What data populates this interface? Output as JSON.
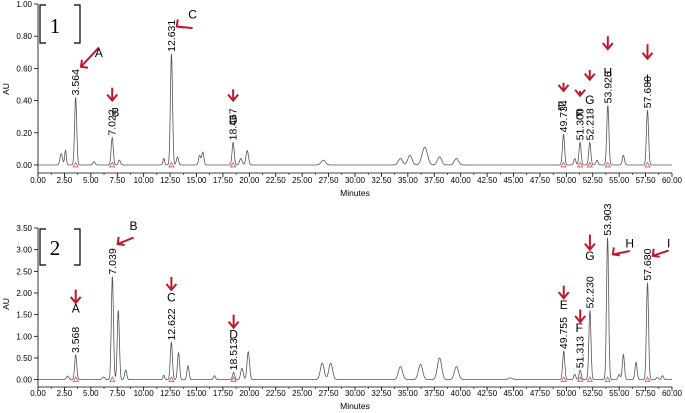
{
  "chart_data": [
    {
      "type": "line",
      "panel_label": "1",
      "xlabel": "Minutes",
      "ylabel": "AU",
      "xlim": [
        0,
        60
      ],
      "ylim": [
        -0.05,
        1.0
      ],
      "x_ticks": [
        "0.00",
        "2.50",
        "5.00",
        "7.50",
        "10.00",
        "12.50",
        "15.00",
        "17.50",
        "20.00",
        "22.50",
        "25.00",
        "27.50",
        "30.00",
        "32.50",
        "35.00",
        "37.50",
        "40.00",
        "42.50",
        "45.00",
        "47.50",
        "50.00",
        "52.50",
        "55.00",
        "57.50",
        "60.00"
      ],
      "y_ticks": [
        "0.00",
        "0.20",
        "0.40",
        "0.60",
        "0.80",
        "1.00"
      ],
      "peaks": [
        {
          "letter": "A",
          "rt": "3.564",
          "x": 3.564,
          "height": 0.42,
          "arrow": "diag",
          "la": 0.61,
          "lb": 0.73,
          "tb": 0.67,
          "lx": 1.4
        },
        {
          "letter": "B",
          "rt": "7.022",
          "x": 7.022,
          "height": 0.17,
          "arrow": "down",
          "la": 0.4,
          "lb": 0.48,
          "tb": 0.3,
          "lx": 0.3
        },
        {
          "letter": "C",
          "rt": "12.631",
          "x": 12.631,
          "height": 0.69,
          "arrow": "diag",
          "la": 0.86,
          "lb": 0.85,
          "tb": 0.91,
          "lx": 1.2
        },
        {
          "letter": "D",
          "rt": "18.467",
          "x": 18.467,
          "height": 0.14,
          "arrow": "down",
          "la": 0.4,
          "lb": 0.47,
          "tb": 0.25,
          "lx": 0
        },
        {
          "letter": "E",
          "rt": "49.734",
          "x": 49.734,
          "height": 0.19,
          "arrow": "down",
          "la": 0.46,
          "lb": 0.51,
          "tb": 0.34,
          "lx": -0.2
        },
        {
          "letter": "F",
          "rt": "51.300",
          "x": 51.3,
          "height": 0.14,
          "arrow": "down",
          "la": 0.43,
          "lb": 0.46,
          "tb": 0.29,
          "lx": -0.1
        },
        {
          "letter": "G",
          "rt": "52.218",
          "x": 52.218,
          "height": 0.14,
          "arrow": "down",
          "la": 0.53,
          "lb": 0.59,
          "tb": 0.38,
          "lx": 0
        },
        {
          "letter": "H",
          "rt": "53.926",
          "x": 53.926,
          "height": 0.37,
          "arrow": "down",
          "la": 0.72,
          "lb": 0.8,
          "tb": 0.55,
          "lx": 0
        },
        {
          "letter": "I",
          "rt": "57.680",
          "x": 57.68,
          "height": 0.34,
          "arrow": "down",
          "la": 0.66,
          "lb": 0.75,
          "tb": 0.51,
          "lx": 0
        }
      ]
    },
    {
      "type": "line",
      "panel_label": "2",
      "xlabel": "Minutes",
      "ylabel": "AU",
      "xlim": [
        0,
        60
      ],
      "ylim": [
        -0.17,
        3.5
      ],
      "x_ticks": [
        "0.00",
        "2.50",
        "5.00",
        "7.50",
        "10.00",
        "12.50",
        "15.00",
        "17.50",
        "20.00",
        "22.50",
        "25.00",
        "27.50",
        "30.00",
        "32.50",
        "35.00",
        "37.50",
        "40.00",
        "42.50",
        "45.00",
        "47.50",
        "50.00",
        "52.50",
        "55.00",
        "57.50",
        "60.00"
      ],
      "y_ticks": [
        "0.00",
        "0.50",
        "1.00",
        "1.50",
        "2.00",
        "2.50",
        "3.00",
        "3.50"
      ],
      "peaks": [
        {
          "letter": "A",
          "rt": "3.568",
          "x": 3.568,
          "height": 0.57,
          "arrow": "down",
          "la": 1.77,
          "lb": 2.08,
          "tb": 1.55,
          "lx": 0
        },
        {
          "letter": "B",
          "rt": "7.039",
          "x": 7.039,
          "height": 2.38,
          "arrow": "diag",
          "la": 3.13,
          "lb": 3.28,
          "tb": 3.45,
          "lx": 1.2
        },
        {
          "letter": "C",
          "rt": "12.622",
          "x": 12.622,
          "height": 0.86,
          "arrow": "down",
          "la": 2.07,
          "lb": 2.37,
          "tb": 1.8,
          "lx": 0
        },
        {
          "letter": "D",
          "rt": "18.513",
          "x": 18.513,
          "height": 0.17,
          "arrow": "down",
          "la": 1.2,
          "lb": 1.5,
          "tb": 0.95,
          "lx": 0
        },
        {
          "letter": "E",
          "rt": "49.755",
          "x": 49.755,
          "height": 0.66,
          "arrow": "down",
          "la": 1.88,
          "lb": 2.17,
          "tb": 1.63,
          "lx": 0
        },
        {
          "letter": "F",
          "rt": "51.313",
          "x": 51.313,
          "height": 0.22,
          "arrow": "down",
          "la": 1.33,
          "lb": 1.62,
          "tb": 1.1,
          "lx": -0.1
        },
        {
          "letter": "G",
          "rt": "52.230",
          "x": 52.23,
          "height": 1.6,
          "arrow": "down",
          "la": 3.0,
          "lb": 3.35,
          "tb": 2.76,
          "lx": 0
        },
        {
          "letter": "H",
          "rt": "53.903",
          "x": 53.903,
          "height": 3.28,
          "arrow": "diag",
          "la": 2.89,
          "lb": 2.97,
          "tb": 3.05,
          "lx": 1.3
        },
        {
          "letter": "I",
          "rt": "57.680",
          "x": 57.68,
          "height": 2.24,
          "arrow": "diag",
          "la": 2.86,
          "lb": 2.98,
          "tb": 3.05,
          "lx": 1.2
        }
      ]
    }
  ],
  "colors": {
    "trace": "#555555",
    "axis": "#000000",
    "arrow": "#c0172d",
    "marker": "#e05050"
  }
}
